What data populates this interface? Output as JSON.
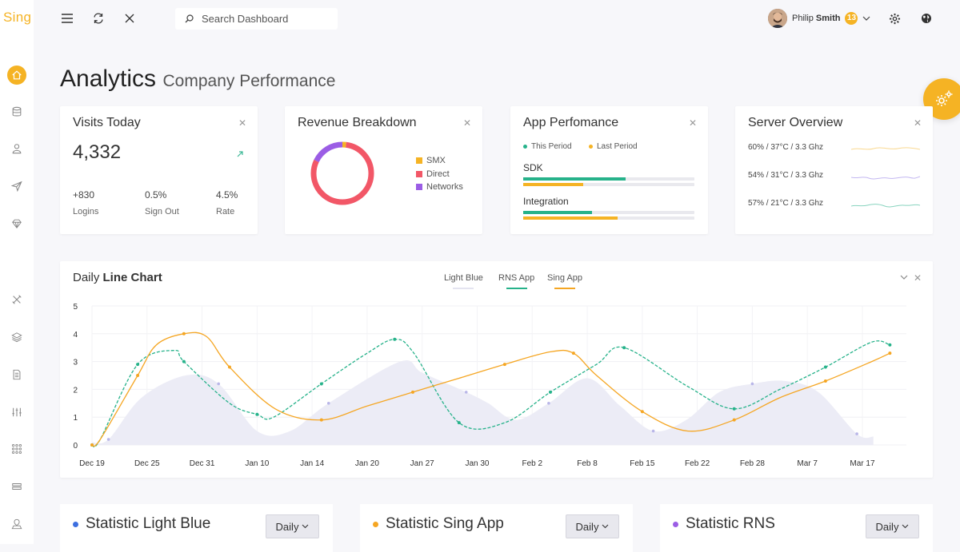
{
  "app": {
    "logo": "Sing"
  },
  "search": {
    "placeholder": "Search Dashboard"
  },
  "user": {
    "first_name": "Philip",
    "last_name": "Smith",
    "notifications": "13"
  },
  "page": {
    "title": "Analytics",
    "subtitle": "Company Performance"
  },
  "visits": {
    "title": "Visits Today",
    "value": "4,332",
    "stats": [
      {
        "value": "+830",
        "label": "Logins"
      },
      {
        "value": "0.5%",
        "label": "Sign Out"
      },
      {
        "value": "4.5%",
        "label": "Rate"
      }
    ]
  },
  "revenue": {
    "title": "Revenue Breakdown",
    "legend": [
      {
        "label": "SMX",
        "color": "#f5b324",
        "percent": 2
      },
      {
        "label": "Direct",
        "color": "#f25767",
        "percent": 80
      },
      {
        "label": "Networks",
        "color": "#9b5de5",
        "percent": 18
      }
    ]
  },
  "app_perf": {
    "title": "App Perfomance",
    "this_period": "This Period",
    "last_period": "Last Period",
    "bars": [
      {
        "label": "SDK",
        "this": 60,
        "last": 35
      },
      {
        "label": "Integration",
        "this": 40,
        "last": 55
      }
    ]
  },
  "server": {
    "title": "Server Overview",
    "rows": [
      {
        "text": "60% / 37°C / 3.3 Ghz",
        "color": "#f5b324"
      },
      {
        "text": "54% / 31°C / 3.3 Ghz",
        "color": "#9b87e8"
      },
      {
        "text": "57% / 21°C / 3.3 Ghz",
        "color": "#3ab795"
      }
    ]
  },
  "daily_chart": {
    "title_light": "Daily ",
    "title_bold": "Line Chart",
    "legend": [
      {
        "label": "Light Blue",
        "color": "#e4e4f0"
      },
      {
        "label": "RNS App",
        "color": "#26b28a"
      },
      {
        "label": "Sing App",
        "color": "#f5a623"
      }
    ]
  },
  "chart_data": {
    "type": "line",
    "title": "Daily Line Chart",
    "x": [
      "Dec 19",
      "Dec 25",
      "Dec 31",
      "Jan 10",
      "Jan 14",
      "Jan 20",
      "Jan 27",
      "Jan 30",
      "Feb 2",
      "Feb 8",
      "Feb 15",
      "Feb 22",
      "Feb 28",
      "Mar 7",
      "Mar 17"
    ],
    "ylim": [
      0,
      5
    ],
    "yticks": [
      0,
      1,
      2,
      3,
      4,
      5
    ],
    "series": [
      {
        "name": "Light Blue",
        "type": "area",
        "x": [
          0,
          0.3,
          0.9,
          1.7,
          2.3,
          3,
          3.6,
          4.3,
          5.6,
          6,
          6.8,
          7.2,
          7.7,
          8.3,
          9,
          9.6,
          10.2,
          10.8,
          11.4,
          12,
          12.6,
          13.2,
          13.9,
          14.2
        ],
        "values": [
          0.1,
          0.2,
          1.7,
          2.5,
          2.2,
          0.5,
          0.5,
          1.5,
          3,
          2.6,
          1.9,
          1.5,
          0.9,
          1.5,
          2.4,
          1.4,
          0.5,
          0.9,
          1.9,
          2.2,
          2.3,
          1.9,
          0.4,
          0.3
        ]
      },
      {
        "name": "RNS App",
        "type": "dashed",
        "x": [
          0,
          0.15,
          0.83,
          1.5,
          1.67,
          2.5,
          3,
          3.3,
          4.17,
          5,
          5.5,
          5.85,
          6.67,
          7.5,
          8.33,
          9.17,
          9.67,
          10.83,
          11.67,
          12.5,
          13.33,
          14.17,
          14.5
        ],
        "values": [
          0,
          0.2,
          2.9,
          3.4,
          3,
          1.5,
          1.1,
          1,
          2.2,
          3.3,
          3.8,
          3.3,
          0.8,
          0.8,
          1.9,
          2.9,
          3.5,
          2.1,
          1.3,
          2,
          2.8,
          3.7,
          3.6
        ]
      },
      {
        "name": "Sing App",
        "type": "solid",
        "x": [
          0,
          0.15,
          0.83,
          1.17,
          1.67,
          2.08,
          2.5,
          3.33,
          4.17,
          5,
          5.83,
          6.67,
          7.5,
          8.33,
          8.75,
          9.17,
          10,
          10.83,
          11.67,
          12.5,
          13.33,
          14.17,
          14.5
        ],
        "values": [
          0,
          0.2,
          2.5,
          3.6,
          4,
          3.9,
          2.8,
          1.3,
          0.9,
          1.4,
          1.9,
          2.4,
          2.9,
          3.35,
          3.3,
          2.5,
          1.2,
          0.5,
          0.9,
          1.7,
          2.3,
          3,
          3.3
        ]
      }
    ]
  },
  "bottom": [
    {
      "title": "Statistic Light Blue",
      "color": "#3d6fe0",
      "button": "Daily"
    },
    {
      "title": "Statistic Sing App",
      "color": "#f5a623",
      "button": "Daily"
    },
    {
      "title": "Statistic RNS",
      "color": "#9b5de5",
      "button": "Daily"
    }
  ]
}
